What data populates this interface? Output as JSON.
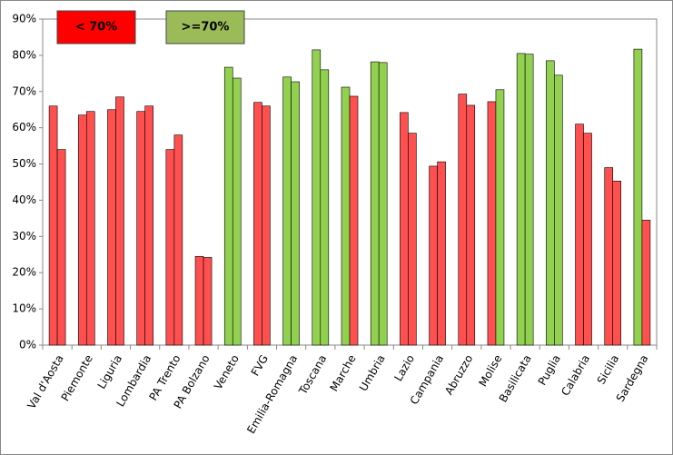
{
  "chart_data": {
    "type": "bar",
    "categories": [
      "Val d'Aosta",
      "Piemonte",
      "Liguria",
      "Lombardia",
      "PA Trento",
      "PA Bolzano",
      "Veneto",
      "FVG",
      "Emilia-Romagna",
      "Toscana",
      "Marche",
      "Umbria",
      "Lazio",
      "Campania",
      "Abruzzo",
      "Molise",
      "Basilicata",
      "Puglia",
      "Calabria",
      "Sicilia",
      "Sardegna"
    ],
    "series": [
      {
        "values": [
          66,
          63.5,
          65,
          64.5,
          54,
          24.5,
          76.7,
          67,
          74,
          81.5,
          71.2,
          78.2,
          64.2,
          49.4,
          69.3,
          67.2,
          80.5,
          78.5,
          61,
          49,
          81.7
        ],
        "colors": [
          "#ff5050",
          "#ff5050",
          "#ff5050",
          "#ff5050",
          "#ff5050",
          "#ff5050",
          "#92d050",
          "#ff5050",
          "#92d050",
          "#92d050",
          "#92d050",
          "#92d050",
          "#ff5050",
          "#ff5050",
          "#ff5050",
          "#ff5050",
          "#92d050",
          "#92d050",
          "#ff5050",
          "#ff5050",
          "#92d050"
        ]
      },
      {
        "values": [
          54,
          64.5,
          68.5,
          66,
          58,
          24.2,
          73.7,
          66,
          72.7,
          76,
          68.7,
          78,
          58.5,
          50.6,
          66.2,
          70.5,
          80.3,
          74.5,
          58.5,
          45.3,
          34.5
        ],
        "colors": [
          "#ff5050",
          "#ff5050",
          "#ff5050",
          "#ff5050",
          "#ff5050",
          "#ff5050",
          "#92d050",
          "#ff5050",
          "#92d050",
          "#92d050",
          "#ff5050",
          "#92d050",
          "#ff5050",
          "#ff5050",
          "#ff5050",
          "#92d050",
          "#92d050",
          "#92d050",
          "#ff5050",
          "#ff5050",
          "#ff5050"
        ]
      }
    ],
    "legend": [
      {
        "label": "< 70%",
        "color": "#ff0000"
      },
      {
        "label": ">=70%",
        "color": "#9bbb59"
      }
    ],
    "ylim": [
      0,
      90
    ],
    "yticks": [
      {
        "value": 0,
        "label": "0%"
      },
      {
        "value": 10,
        "label": "10%"
      },
      {
        "value": 20,
        "label": "20%"
      },
      {
        "value": 30,
        "label": "30%"
      },
      {
        "value": 40,
        "label": "40%"
      },
      {
        "value": 50,
        "label": "50%"
      },
      {
        "value": 60,
        "label": "60%"
      },
      {
        "value": 70,
        "label": "70%"
      },
      {
        "value": 80,
        "label": "80%"
      },
      {
        "value": 90,
        "label": "90%"
      }
    ],
    "grid": false
  }
}
